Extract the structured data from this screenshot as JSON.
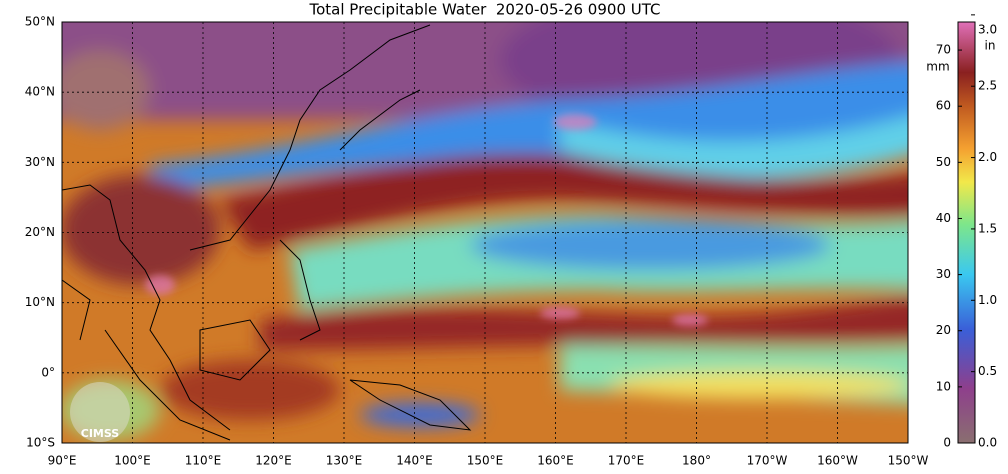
{
  "map": {
    "title": "Total Precipitable Water  2020-05-26 0900 UTC",
    "lat_range": [
      -10,
      50
    ],
    "lon_range": [
      90,
      210
    ],
    "lat_labels": [
      {
        "value": 50,
        "label": "50°N"
      },
      {
        "value": 40,
        "label": "40°N"
      },
      {
        "value": 30,
        "label": "30°N"
      },
      {
        "value": 20,
        "label": "20°N"
      },
      {
        "value": 10,
        "label": "10°N"
      },
      {
        "value": 0,
        "label": "0°"
      },
      {
        "value": -10,
        "label": "10°S"
      }
    ],
    "lon_labels": [
      {
        "value": 90,
        "label": "90°E"
      },
      {
        "value": 100,
        "label": "100°E"
      },
      {
        "value": 110,
        "label": "110°E"
      },
      {
        "value": 120,
        "label": "120°E"
      },
      {
        "value": 130,
        "label": "130°E"
      },
      {
        "value": 140,
        "label": "140°E"
      },
      {
        "value": 150,
        "label": "150°E"
      },
      {
        "value": 160,
        "label": "160°E"
      },
      {
        "value": 170,
        "label": "170°E"
      },
      {
        "value": 180,
        "label": "180°"
      },
      {
        "value": 190,
        "label": "170°W"
      },
      {
        "value": 200,
        "label": "160°W"
      },
      {
        "value": 210,
        "label": "150°W"
      }
    ],
    "colorbar": {
      "mm_unit": "mm",
      "in_unit": "in",
      "mm_range": [
        0,
        75
      ],
      "in_range": [
        0,
        2.95
      ],
      "mm_ticks": [
        0,
        10,
        20,
        30,
        40,
        50,
        60,
        70
      ],
      "in_ticks": [
        {
          "value": 0,
          "label": "0.0"
        },
        {
          "value": 0.5,
          "label": "0.5"
        },
        {
          "value": 1,
          "label": "1.0"
        },
        {
          "value": 1.5,
          "label": "1.5"
        },
        {
          "value": 2,
          "label": "2.0"
        },
        {
          "value": 2.5,
          "label": "2.5"
        },
        {
          "value": 3,
          "label": "3.0"
        }
      ]
    },
    "logo": "CIMSS"
  }
}
